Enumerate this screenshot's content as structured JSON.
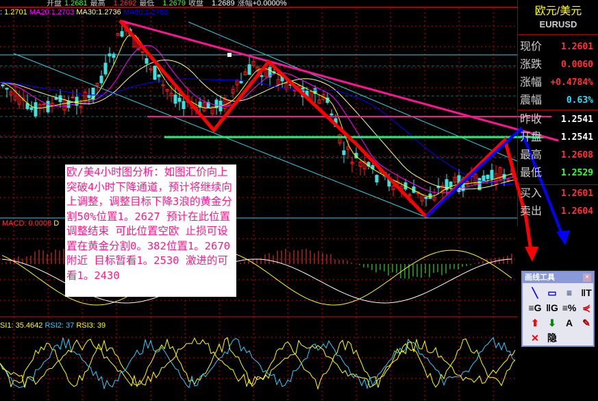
{
  "header": {
    "open_label": "开盘",
    "open": "1.2681",
    "high_label": "最高",
    "high": "1.2692",
    "low_label": "最低",
    "low": "1.2679",
    "close_label": "收盘",
    "close": "1.2689",
    "change_label": "涨幅",
    "change": "+0.0000%"
  },
  "ma": {
    "ma10": ": 1.2701",
    "ma20_label": "MA20:",
    "ma20": "1.2703",
    "ma30_label": "MA30:",
    "ma30": "1.2736",
    "ma60_label": "MA60:",
    "ma60": "1.2783"
  },
  "side": {
    "title": "欧元/美元",
    "symbol": "EURUSD",
    "rows": [
      {
        "k": "现价",
        "v": "1.2601",
        "c": "#ff3333"
      },
      {
        "k": "涨跌",
        "v": "0.0060",
        "c": "#ff3333"
      },
      {
        "k": "涨幅",
        "v": "+0.4784%",
        "c": "#ff3333"
      },
      {
        "k": "震幅",
        "v": "0.63%",
        "c": "#33ddff"
      },
      {
        "k": "昨收",
        "v": "1.2541",
        "c": "#ffffff"
      },
      {
        "k": "开盘",
        "v": "1.2541",
        "c": "#ffffff"
      },
      {
        "k": "最高",
        "v": "1.2608",
        "c": "#ff3333"
      },
      {
        "k": "最低",
        "v": "1.2529",
        "c": "#33ff33"
      },
      {
        "k": "买入",
        "v": "1.2601",
        "c": "#ff3333"
      },
      {
        "k": "卖出",
        "v": "1.2604",
        "c": "#ff3333"
      }
    ]
  },
  "note": "欧/美4小时图分析：如图汇价向上突破4小时下降通道，预计将继续向上调整，调整目标下降3浪的黄金分割50%位置1。2627 预计在此位置调整结束 可此位置空欧 止损可设置在黄金分割0。382位置1。2670附近 目标暂看1。2530 激进的可看1。2430",
  "macd": {
    "label": "MACD: 0.0008",
    "suffix": "D"
  },
  "rsi": {
    "rsi1": "SI1: 35.4642",
    "rsi2": "RSI2: 37",
    "rsi3": "RSI3: 39"
  },
  "tools": {
    "title": "画线工具",
    "close": "×",
    "items": [
      {
        "icon": "line-icon",
        "g": "╲",
        "c": "#00f"
      },
      {
        "icon": "rectangle-icon",
        "g": "▭",
        "c": "#00f"
      },
      {
        "icon": "parallel-lines-icon",
        "g": "≡",
        "c": "#00f"
      },
      {
        "icon": "text-lines-icon",
        "g": "‖T",
        "c": "#000"
      },
      {
        "icon": "gann-icon",
        "g": "≡G",
        "c": "#000"
      },
      {
        "icon": "gann-vertical-icon",
        "g": "‖G",
        "c": "#000"
      },
      {
        "icon": "percent-lines-icon",
        "g": "≡%",
        "c": "#000"
      },
      {
        "icon": "fan-icon",
        "g": "⋞",
        "c": "#c00"
      },
      {
        "icon": "up-arrow-icon",
        "g": "⬆",
        "c": "#f00"
      },
      {
        "icon": "down-arrow-icon",
        "g": "⬇",
        "c": "#080"
      },
      {
        "icon": "text-icon",
        "g": "A",
        "c": "#000"
      },
      {
        "icon": "eraser-icon",
        "g": "✎",
        "c": "#a00"
      },
      {
        "icon": "delete-icon",
        "g": "✕",
        "c": "#f00"
      },
      {
        "icon": "hide-icon",
        "g": "隐",
        "c": "#000"
      }
    ]
  },
  "colors": {
    "up": "#ff2020",
    "down": "#40e0e0",
    "trendline": "#ff1493",
    "zigzag": "#ff0000",
    "blue_wave": "#0000ff",
    "support": "#00ff80"
  }
}
